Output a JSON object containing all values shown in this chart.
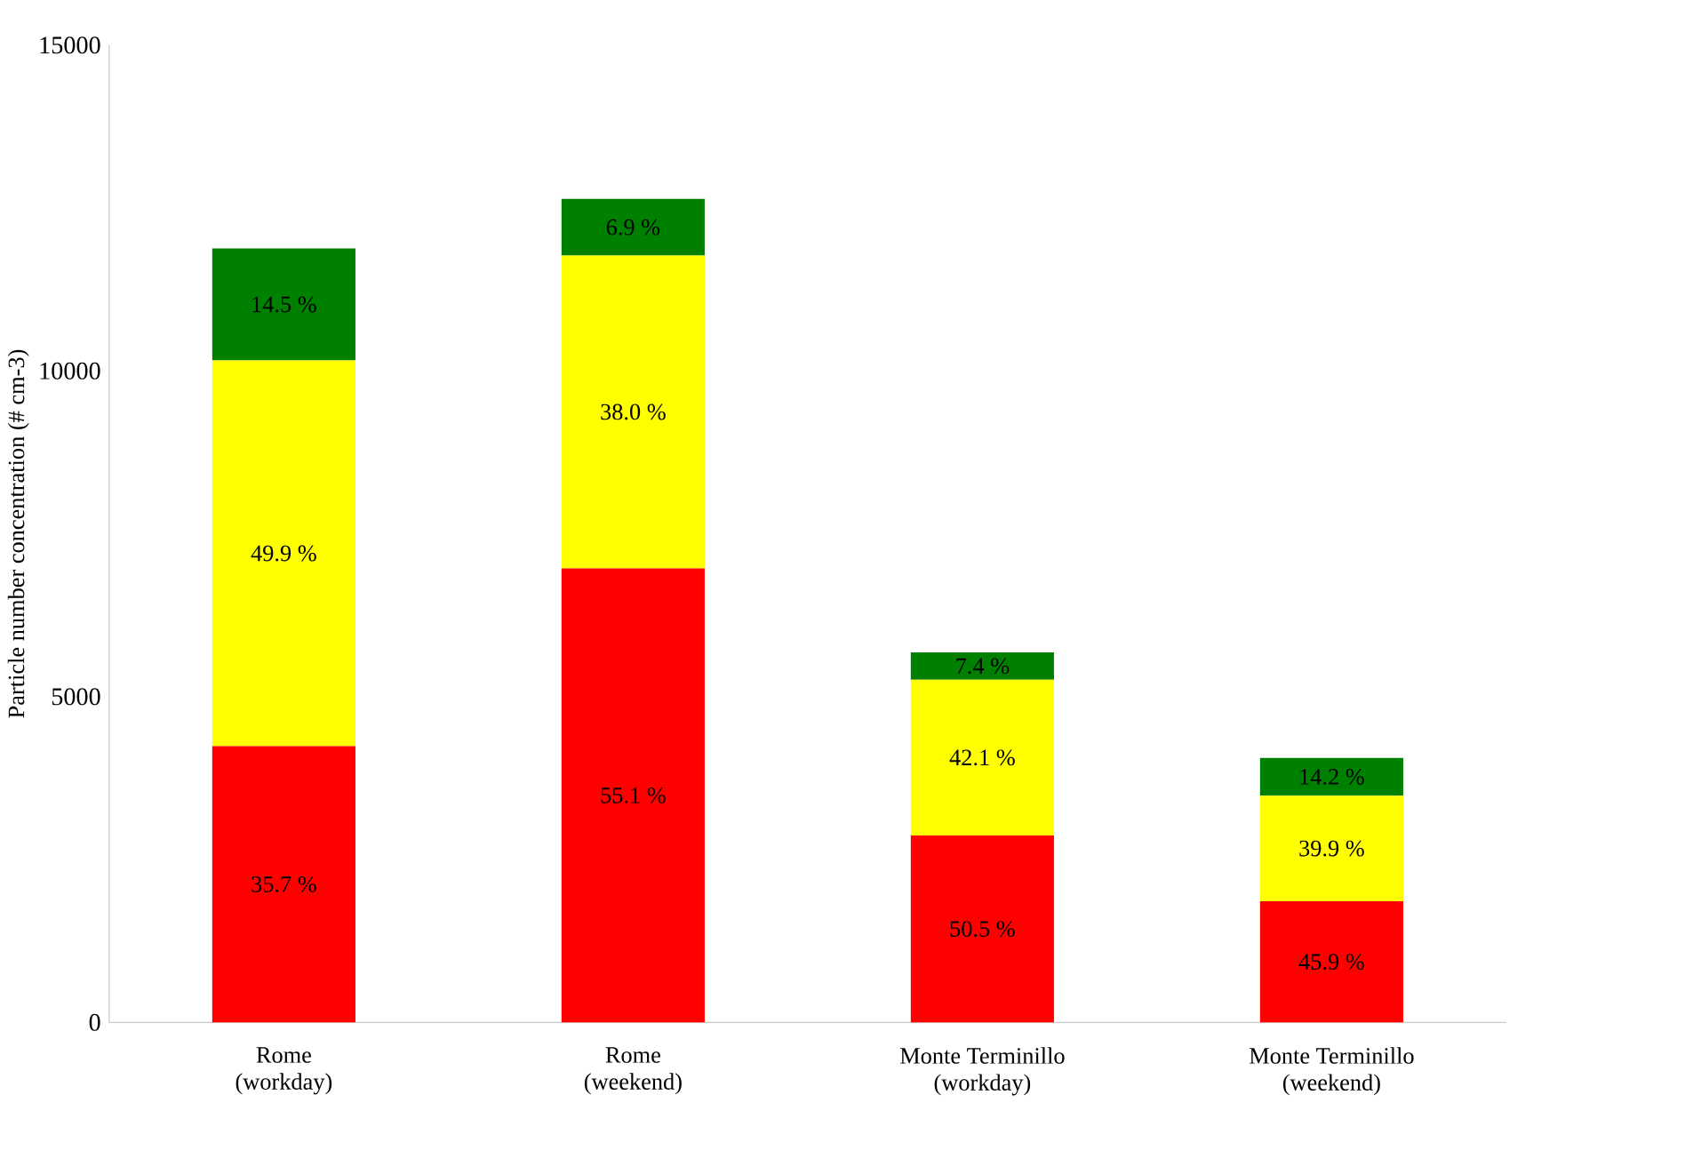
{
  "chart_data": {
    "type": "bar",
    "stacked": true,
    "ylabel": "Particle number concentration (# cm-3)",
    "categories": [
      "Rome (workday)",
      "Rome (weekend)",
      "Monte Terminillo (workday)",
      "Monte Terminillo (weekend)"
    ],
    "series": [
      {
        "color": "#ff0000",
        "values": [
          4240,
          6970,
          2870,
          1860
        ]
      },
      {
        "color": "#ffff00",
        "values": [
          5920,
          4800,
          2390,
          1620
        ]
      },
      {
        "color": "#008000",
        "values": [
          1720,
          870,
          420,
          580
        ]
      }
    ],
    "annotations": [
      "35.7 %",
      "49.9 %",
      "14.5 %",
      "55.1 %",
      "38.0 %",
      "6.9 %",
      "50.5 %",
      "42.1 %",
      "7.4 %",
      "45.9 %",
      "39.9 %",
      "14.2 %"
    ],
    "ylim": [
      0,
      15000
    ],
    "yticks": [
      0,
      5000,
      10000,
      15000
    ],
    "grid": false
  }
}
